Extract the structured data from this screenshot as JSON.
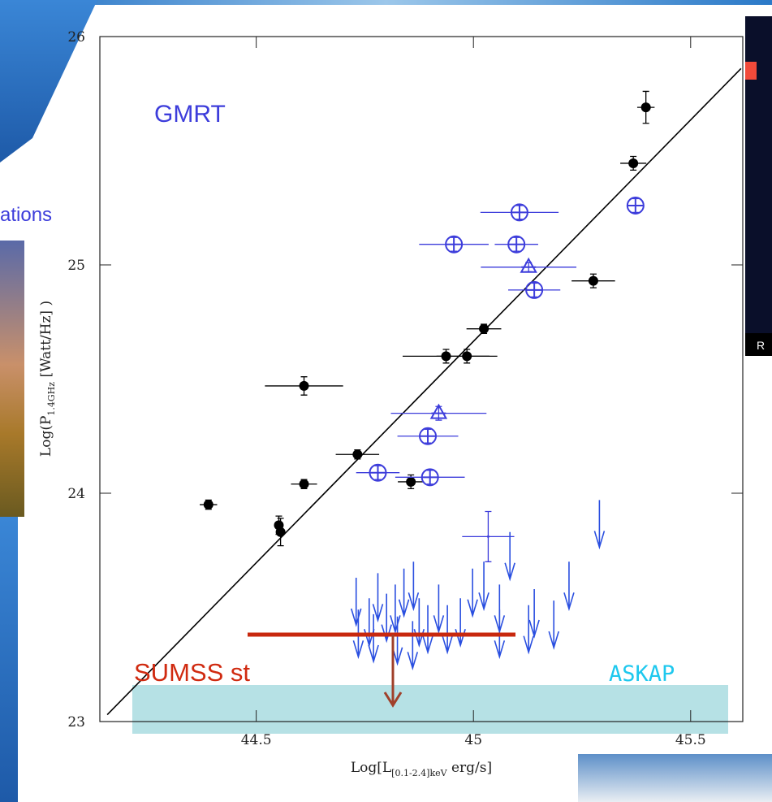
{
  "chart_data": {
    "type": "scatter",
    "xlabel": [
      "Log[L",
      "[0.1-2.4]keV",
      " erg/s]"
    ],
    "ylabel": [
      "Log(P",
      "1.4GHz",
      " [Watt/Hz] )"
    ],
    "xlim": [
      44.14,
      45.62
    ],
    "ylim": [
      23,
      26
    ],
    "xticks": [
      44.5,
      45,
      45.5
    ],
    "yticks": [
      23,
      24,
      25,
      26
    ],
    "series": [
      {
        "marker": "filled-circle",
        "color": "#000000",
        "x": [
          45.397,
          45.368,
          45.276,
          45.024,
          44.937,
          44.985,
          44.61,
          44.733,
          44.61,
          44.856,
          44.39,
          44.552,
          44.556
        ],
        "values": [
          25.69,
          25.445,
          24.93,
          24.72,
          24.6,
          24.6,
          24.47,
          24.17,
          24.04,
          24.05,
          23.95,
          23.86,
          23.83
        ],
        "xerr": [
          0.02,
          0.03,
          0.05,
          0.04,
          0.1,
          0.07,
          0.09,
          0.05,
          0.03,
          0.03,
          0.02,
          0,
          0
        ],
        "yerr": [
          0.07,
          0.03,
          0.03,
          0.02,
          0.03,
          0.03,
          0.04,
          0.02,
          0.02,
          0.03,
          0.02,
          0.04,
          0.06
        ]
      },
      {
        "marker": "open-circle",
        "color": "#3d3ddb",
        "x": [
          45.106,
          44.955,
          45.099,
          45.373,
          45.14,
          44.895,
          44.78,
          44.9
        ],
        "values": [
          25.23,
          25.09,
          25.09,
          25.26,
          24.89,
          24.25,
          24.09,
          24.07
        ],
        "xerr": [
          0.09,
          0.08,
          0.05,
          0.02,
          0.06,
          0.07,
          0.05,
          0.08
        ],
        "yerr": [
          0.03,
          0.03,
          0.03,
          0.03,
          0.03,
          0.03,
          0.03,
          0.03
        ]
      },
      {
        "marker": "triangle",
        "color": "#3d3ddb",
        "x": [
          45.127,
          44.92
        ],
        "values": [
          24.99,
          24.35
        ],
        "xerr": [
          0.11,
          0.11
        ],
        "yerr": [
          0.02,
          0.03
        ]
      },
      {
        "marker": "cross",
        "color": "#3d3ddb",
        "x": [
          45.034
        ],
        "values": [
          23.81
        ],
        "xerr": [
          0.06
        ],
        "yerr": [
          0.11
        ]
      },
      {
        "marker": "upper-limit",
        "color": "#2a4fe0",
        "x": [
          45.29,
          45.084,
          45.024,
          44.998,
          45.22,
          45.14,
          45.185,
          45.127,
          45.06,
          44.862,
          44.84,
          44.82,
          44.78,
          44.73,
          44.76,
          44.8,
          44.875,
          44.92,
          44.94,
          44.97,
          44.735,
          44.77,
          44.825,
          44.86,
          44.895,
          45.06
        ],
        "values": [
          23.97,
          23.83,
          23.7,
          23.67,
          23.7,
          23.58,
          23.53,
          23.51,
          23.6,
          23.7,
          23.67,
          23.6,
          23.65,
          23.63,
          23.54,
          23.56,
          23.54,
          23.6,
          23.51,
          23.54,
          23.49,
          23.47,
          23.46,
          23.44,
          23.51,
          23.49
        ]
      }
    ],
    "fit": {
      "color": "#000000",
      "x": [
        44.157,
        45.616
      ],
      "values": [
        23.03,
        25.86
      ]
    },
    "annotations": [
      "GMRT",
      "SUMSS st",
      "ASKAP"
    ]
  },
  "slide_fragments": [
    "ations",
    "R"
  ]
}
